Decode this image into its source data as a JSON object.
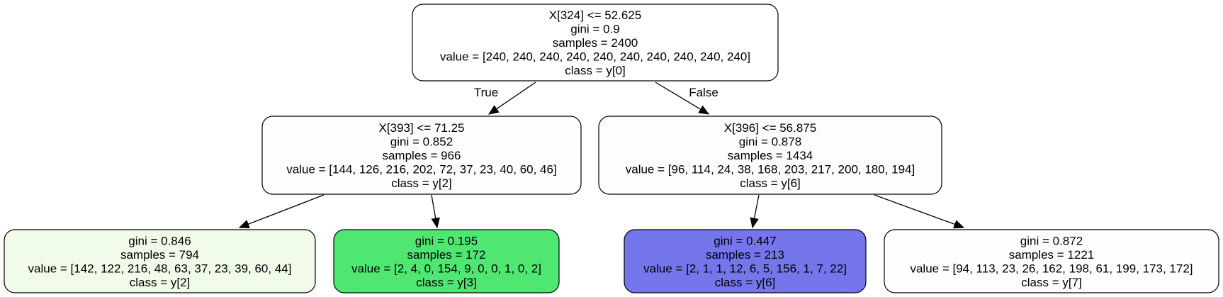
{
  "diagram": {
    "type": "decision-tree",
    "nodes": [
      {
        "id": "n0",
        "lines": [
          "X[324] <= 52.625",
          "gini = 0.9",
          "samples = 2400",
          "value = [240, 240, 240, 240, 240, 240, 240, 240, 240, 240]",
          "class = y[0]"
        ],
        "fill": "#ffffff"
      },
      {
        "id": "n1",
        "lines": [
          "X[393] <= 71.25",
          "gini = 0.852",
          "samples = 966",
          "value = [144, 126, 216, 202, 72, 37, 23, 40, 60, 46]",
          "class = y[2]"
        ],
        "fill": "#fdfffc"
      },
      {
        "id": "n2",
        "lines": [
          "X[396] <= 56.875",
          "gini = 0.878",
          "samples = 1434",
          "value = [96, 114, 24, 38, 168, 203, 217, 200, 180, 194]",
          "class = y[6]"
        ],
        "fill": "#fdfdff"
      },
      {
        "id": "n3",
        "lines": [
          "gini = 0.846",
          "samples = 794",
          "value = [142, 122, 216, 48, 63, 37, 23, 39, 60, 44]",
          "class = y[2]"
        ],
        "fill": "#f1fbea"
      },
      {
        "id": "n4",
        "lines": [
          "gini = 0.195",
          "samples = 172",
          "value = [2, 4, 0, 154, 9, 0, 0, 1, 0, 2]",
          "class = y[3]"
        ],
        "fill": "#4fe772"
      },
      {
        "id": "n5",
        "lines": [
          "gini = 0.447",
          "samples = 213",
          "value = [2, 1, 1, 12, 6, 5, 156, 1, 7, 22]",
          "class = y[6]"
        ],
        "fill": "#7575ec"
      },
      {
        "id": "n6",
        "lines": [
          "gini = 0.872",
          "samples = 1221",
          "value = [94, 113, 23, 26, 162, 198, 61, 199, 173, 172]",
          "class = y[7]"
        ],
        "fill": "#fffeff"
      }
    ],
    "edges": [
      {
        "id": "e1",
        "from": "n0",
        "to": "n1",
        "label": "True"
      },
      {
        "id": "e2",
        "from": "n0",
        "to": "n2",
        "label": "False"
      },
      {
        "id": "e3",
        "from": "n1",
        "to": "n3",
        "label": ""
      },
      {
        "id": "e4",
        "from": "n1",
        "to": "n4",
        "label": ""
      },
      {
        "id": "e5",
        "from": "n2",
        "to": "n5",
        "label": ""
      },
      {
        "id": "e6",
        "from": "n2",
        "to": "n6",
        "label": ""
      }
    ]
  }
}
